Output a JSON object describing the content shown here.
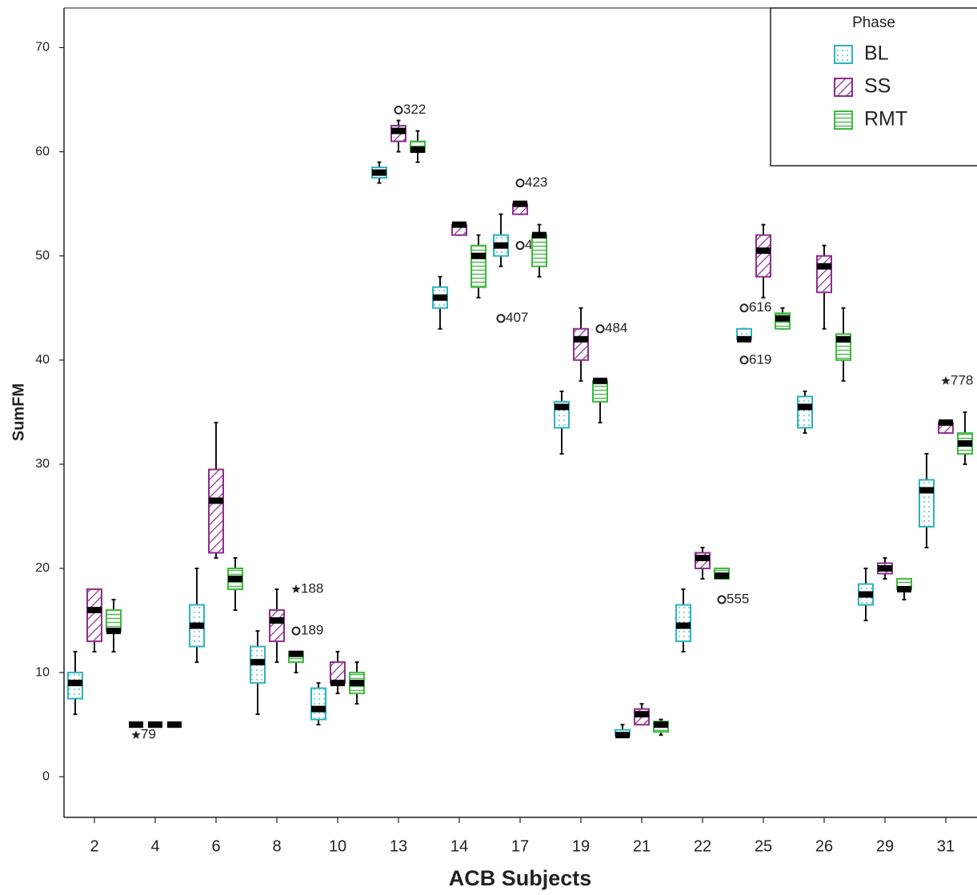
{
  "chart_data": {
    "type": "boxplot",
    "x_label": "ACB Subjects",
    "y_label": "SumFM",
    "categories": [
      "2",
      "4",
      "6",
      "8",
      "10",
      "13",
      "14",
      "17",
      "19",
      "21",
      "22",
      "25",
      "26",
      "29",
      "31"
    ],
    "ylim": [
      -3.9,
      73.8
    ],
    "yticks": [
      0,
      10,
      20,
      30,
      40,
      50,
      60,
      70
    ],
    "legend": {
      "title": "Phase",
      "position": "top-right"
    },
    "series": [
      {
        "name": "BL",
        "color": "#2bb3c0",
        "pattern": "dots",
        "values": [
          {
            "min": 6,
            "q1": 7.5,
            "median": 9,
            "q3": 10,
            "max": 12
          },
          {
            "min": 5,
            "q1": 5,
            "median": 5,
            "q3": 5,
            "max": 5
          },
          {
            "min": 11,
            "q1": 12.5,
            "median": 14.5,
            "q3": 16.5,
            "max": 20
          },
          {
            "min": 6,
            "q1": 9,
            "median": 11,
            "q3": 12.5,
            "max": 14
          },
          {
            "min": 5,
            "q1": 5.5,
            "median": 6.5,
            "q3": 8.5,
            "max": 9
          },
          {
            "min": 57,
            "q1": 57.5,
            "median": 58,
            "q3": 58.5,
            "max": 59
          },
          {
            "min": 43,
            "q1": 45,
            "median": 46,
            "q3": 47,
            "max": 48
          },
          {
            "min": 49,
            "q1": 50,
            "median": 51,
            "q3": 52,
            "max": 54
          },
          {
            "min": 31,
            "q1": 33.5,
            "median": 35.5,
            "q3": 36,
            "max": 37
          },
          {
            "min": 4,
            "q1": 4,
            "median": 4,
            "q3": 4.5,
            "max": 5
          },
          {
            "min": 12,
            "q1": 13,
            "median": 14.5,
            "q3": 16.5,
            "max": 18
          },
          {
            "min": 42,
            "q1": 42,
            "median": 42,
            "q3": 43,
            "max": 43
          },
          {
            "min": 33,
            "q1": 33.5,
            "median": 35.5,
            "q3": 36.5,
            "max": 37
          },
          {
            "min": 15,
            "q1": 16.5,
            "median": 17.5,
            "q3": 18.5,
            "max": 20
          },
          {
            "min": 22,
            "q1": 24,
            "median": 27.5,
            "q3": 28.5,
            "max": 31
          }
        ],
        "outliers": [
          {
            "category": 1,
            "value": 4,
            "label": "79",
            "marker": "star"
          },
          {
            "category": 7,
            "value": 44,
            "label": "407",
            "marker": "circle"
          },
          {
            "category": 11,
            "value": 45,
            "label": "616",
            "marker": "circle"
          },
          {
            "category": 11,
            "value": 40,
            "label": "619",
            "marker": "circle"
          }
        ]
      },
      {
        "name": "SS",
        "color": "#8e2d8e",
        "pattern": "diagonal",
        "values": [
          {
            "min": 12,
            "q1": 13,
            "median": 16,
            "q3": 18,
            "max": 18
          },
          {
            "min": 5,
            "q1": 5,
            "median": 5,
            "q3": 5,
            "max": 5
          },
          {
            "min": 21,
            "q1": 21.5,
            "median": 26.5,
            "q3": 29.5,
            "max": 34
          },
          {
            "min": 11,
            "q1": 13,
            "median": 15,
            "q3": 16,
            "max": 18
          },
          {
            "min": 8,
            "q1": 9,
            "median": 9,
            "q3": 11,
            "max": 12
          },
          {
            "min": 60,
            "q1": 61,
            "median": 62,
            "q3": 62.5,
            "max": 63
          },
          {
            "min": 52,
            "q1": 52,
            "median": 53,
            "q3": 53,
            "max": 53
          },
          {
            "min": 54,
            "q1": 54,
            "median": 55,
            "q3": 55,
            "max": 55
          },
          {
            "min": 38,
            "q1": 40,
            "median": 42,
            "q3": 43,
            "max": 45
          },
          {
            "min": 5,
            "q1": 5,
            "median": 6,
            "q3": 6.5,
            "max": 7
          },
          {
            "min": 19,
            "q1": 20,
            "median": 21,
            "q3": 21.5,
            "max": 22
          },
          {
            "min": 46,
            "q1": 48,
            "median": 50.5,
            "q3": 52,
            "max": 53
          },
          {
            "min": 43,
            "q1": 46.5,
            "median": 49,
            "q3": 50,
            "max": 51
          },
          {
            "min": 19,
            "q1": 19.5,
            "median": 20,
            "q3": 20.5,
            "max": 21
          },
          {
            "min": 33,
            "q1": 33,
            "median": 34,
            "q3": 34,
            "max": 34
          }
        ],
        "outliers": [
          {
            "category": 5,
            "value": 64,
            "label": "322",
            "marker": "circle"
          },
          {
            "category": 7,
            "value": 57,
            "label": "423",
            "marker": "circle"
          },
          {
            "category": 7,
            "value": 51,
            "label": "415",
            "marker": "circle"
          },
          {
            "category": 14,
            "value": 38,
            "label": "778",
            "marker": "star"
          }
        ]
      },
      {
        "name": "RMT",
        "color": "#3cb93c",
        "pattern": "horizontal",
        "values": [
          {
            "min": 12,
            "q1": 14,
            "median": 14,
            "q3": 16,
            "max": 17
          },
          {
            "min": 5,
            "q1": 5,
            "median": 5,
            "q3": 5,
            "max": 5
          },
          {
            "min": 16,
            "q1": 18,
            "median": 19,
            "q3": 20,
            "max": 21
          },
          {
            "min": 10,
            "q1": 11,
            "median": 11.8,
            "q3": 12,
            "max": 12
          },
          {
            "min": 7,
            "q1": 8,
            "median": 9,
            "q3": 10,
            "max": 11
          },
          {
            "min": 59,
            "q1": 60,
            "median": 60.2,
            "q3": 61,
            "max": 62
          },
          {
            "min": 46,
            "q1": 47,
            "median": 50,
            "q3": 51,
            "max": 52
          },
          {
            "min": 48,
            "q1": 49,
            "median": 52,
            "q3": 52,
            "max": 53
          },
          {
            "min": 34,
            "q1": 36,
            "median": 38,
            "q3": 38,
            "max": 38
          },
          {
            "min": 4,
            "q1": 4.3,
            "median": 5,
            "q3": 5.3,
            "max": 5.5
          },
          {
            "min": 19,
            "q1": 19,
            "median": 19.3,
            "q3": 20,
            "max": 20
          },
          {
            "min": 43,
            "q1": 43,
            "median": 44,
            "q3": 44.5,
            "max": 45
          },
          {
            "min": 38,
            "q1": 40,
            "median": 42,
            "q3": 42.5,
            "max": 45
          },
          {
            "min": 17,
            "q1": 18,
            "median": 18,
            "q3": 19,
            "max": 19
          },
          {
            "min": 30,
            "q1": 31,
            "median": 32,
            "q3": 33,
            "max": 35
          }
        ],
        "outliers": [
          {
            "category": 3,
            "value": 14,
            "label": "189",
            "marker": "circle"
          },
          {
            "category": 3,
            "value": 18,
            "label": "188",
            "marker": "star"
          },
          {
            "category": 8,
            "value": 43,
            "label": "484",
            "marker": "circle"
          },
          {
            "category": 10,
            "value": 17,
            "label": "555",
            "marker": "circle"
          }
        ]
      }
    ]
  }
}
